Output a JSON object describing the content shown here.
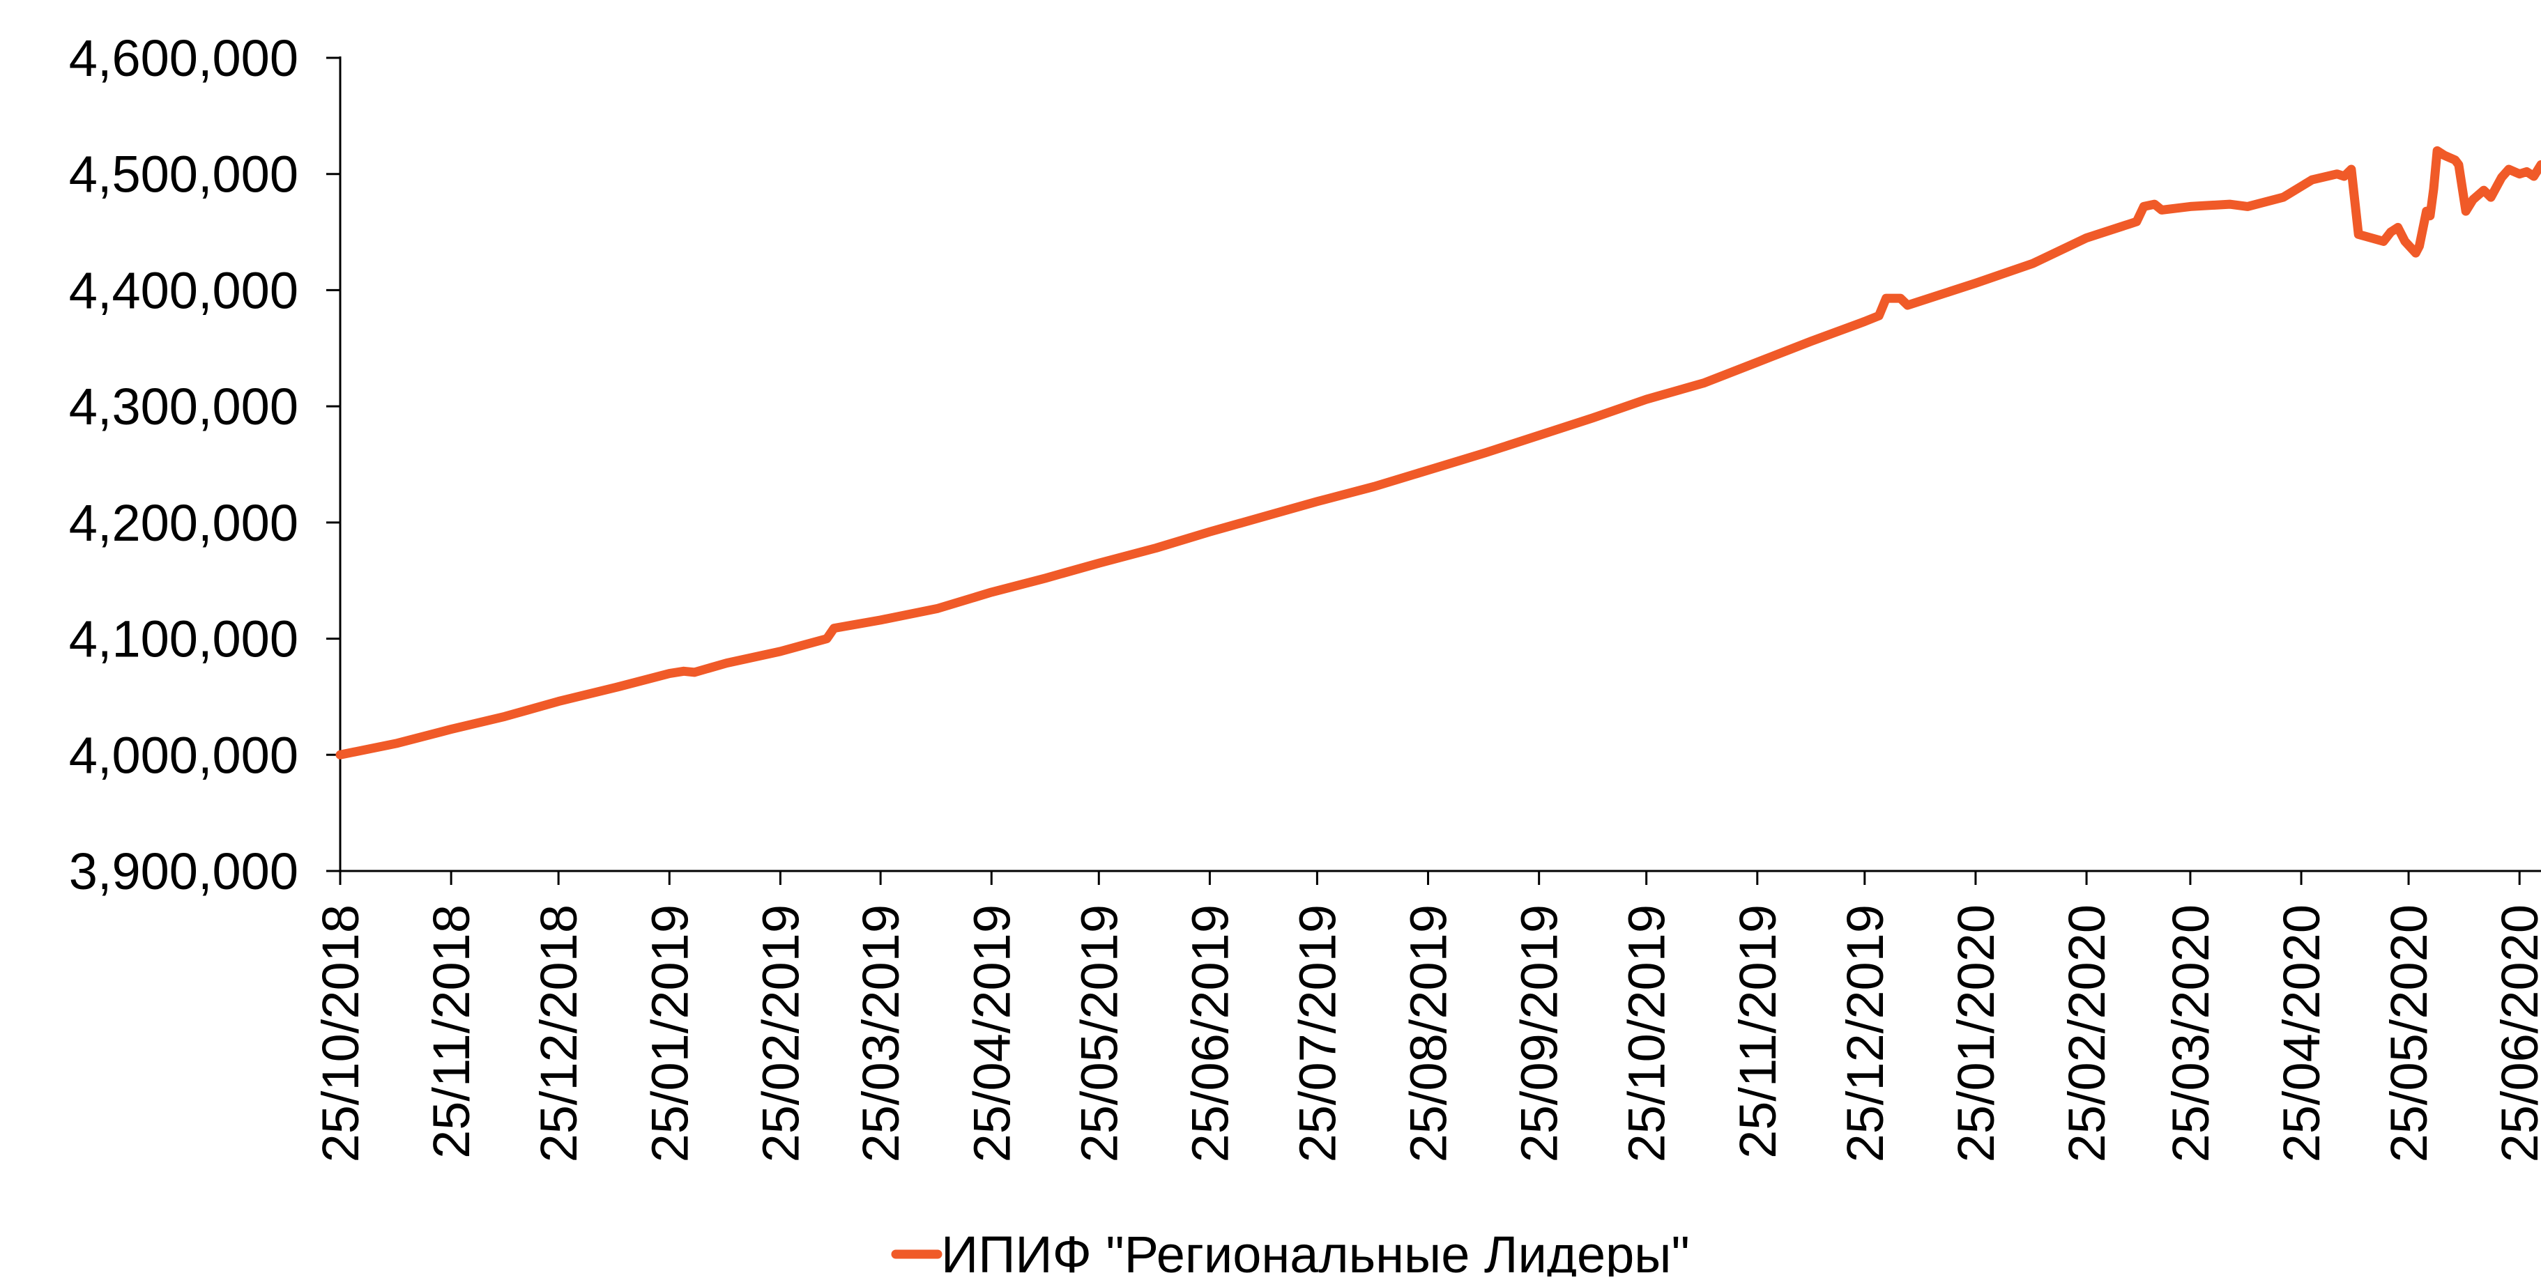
{
  "chart_data": {
    "type": "line",
    "title": "",
    "xlabel": "",
    "ylabel": "",
    "ylim": [
      3900000,
      4600000
    ],
    "yticks": [
      3900000,
      4000000,
      4100000,
      4200000,
      4300000,
      4400000,
      4500000,
      4600000
    ],
    "ytick_labels": [
      "3,900,000",
      "4,000,000",
      "4,100,000",
      "4,200,000",
      "4,300,000",
      "4,400,000",
      "4,500,000",
      "4,600,000"
    ],
    "xlim": [
      "2018-10-25",
      "2020-07-01"
    ],
    "xticks": [
      "2018-10-25",
      "2018-11-25",
      "2018-12-25",
      "2019-01-25",
      "2019-02-25",
      "2019-03-25",
      "2019-04-25",
      "2019-05-25",
      "2019-06-25",
      "2019-07-25",
      "2019-08-25",
      "2019-09-25",
      "2019-10-25",
      "2019-11-25",
      "2019-12-25",
      "2020-01-25",
      "2020-02-25",
      "2020-03-25",
      "2020-04-25",
      "2020-05-25",
      "2020-06-25"
    ],
    "xtick_labels": [
      "25/10/2018",
      "25/11/2018",
      "25/12/2018",
      "25/01/2019",
      "25/02/2019",
      "25/03/2019",
      "25/04/2019",
      "25/05/2019",
      "25/06/2019",
      "25/07/2019",
      "25/08/2019",
      "25/09/2019",
      "25/10/2019",
      "25/11/2019",
      "25/12/2019",
      "25/01/2020",
      "25/02/2020",
      "25/03/2020",
      "25/04/2020",
      "25/05/2020",
      "25/06/2020"
    ],
    "grid": false,
    "legend": "bottom-center",
    "series": [
      {
        "name": "ИПИФ \"Региональные Лидеры\"",
        "color": "#F05A28",
        "points": [
          [
            "2018-10-25",
            4000000
          ],
          [
            "2018-11-10",
            4010000
          ],
          [
            "2018-11-25",
            4022000
          ],
          [
            "2018-12-10",
            4033000
          ],
          [
            "2018-12-25",
            4046000
          ],
          [
            "2019-01-10",
            4058000
          ],
          [
            "2019-01-25",
            4070000
          ],
          [
            "2019-01-29",
            4072000
          ],
          [
            "2019-02-01",
            4071000
          ],
          [
            "2019-02-10",
            4079000
          ],
          [
            "2019-02-25",
            4089000
          ],
          [
            "2019-03-10",
            4100000
          ],
          [
            "2019-03-12",
            4109000
          ],
          [
            "2019-03-25",
            4116000
          ],
          [
            "2019-04-10",
            4126000
          ],
          [
            "2019-04-25",
            4140000
          ],
          [
            "2019-05-10",
            4152000
          ],
          [
            "2019-05-25",
            4165000
          ],
          [
            "2019-06-10",
            4178000
          ],
          [
            "2019-06-25",
            4192000
          ],
          [
            "2019-07-10",
            4205000
          ],
          [
            "2019-07-25",
            4218000
          ],
          [
            "2019-08-10",
            4231000
          ],
          [
            "2019-08-25",
            4245000
          ],
          [
            "2019-09-10",
            4260000
          ],
          [
            "2019-09-25",
            4275000
          ],
          [
            "2019-10-10",
            4290000
          ],
          [
            "2019-10-25",
            4306000
          ],
          [
            "2019-11-10",
            4320000
          ],
          [
            "2019-11-25",
            4338000
          ],
          [
            "2019-12-10",
            4356000
          ],
          [
            "2019-12-25",
            4373000
          ],
          [
            "2019-12-29",
            4378000
          ],
          [
            "2019-12-31",
            4393000
          ],
          [
            "2020-01-04",
            4393000
          ],
          [
            "2020-01-06",
            4387000
          ],
          [
            "2020-01-25",
            4406000
          ],
          [
            "2020-02-10",
            4423000
          ],
          [
            "2020-02-25",
            4445000
          ],
          [
            "2020-03-08",
            4457000
          ],
          [
            "2020-03-10",
            4459000
          ],
          [
            "2020-03-12",
            4472000
          ],
          [
            "2020-03-15",
            4474000
          ],
          [
            "2020-03-17",
            4469000
          ],
          [
            "2020-03-25",
            4472000
          ],
          [
            "2020-04-05",
            4474000
          ],
          [
            "2020-04-10",
            4472000
          ],
          [
            "2020-04-20",
            4480000
          ],
          [
            "2020-04-28",
            4495000
          ],
          [
            "2020-05-05",
            4500000
          ],
          [
            "2020-05-07",
            4498000
          ],
          [
            "2020-05-09",
            4504000
          ],
          [
            "2020-05-11",
            4448000
          ],
          [
            "2020-05-18",
            4442000
          ],
          [
            "2020-05-20",
            4450000
          ],
          [
            "2020-05-22",
            4454000
          ],
          [
            "2020-05-24",
            4442000
          ],
          [
            "2020-05-27",
            4432000
          ],
          [
            "2020-05-28",
            4438000
          ],
          [
            "2020-05-30",
            4468000
          ],
          [
            "2020-05-31",
            4464000
          ],
          [
            "2020-06-01",
            4487000
          ],
          [
            "2020-06-02",
            4520000
          ],
          [
            "2020-06-04",
            4516000
          ],
          [
            "2020-06-07",
            4512000
          ],
          [
            "2020-06-08",
            4508000
          ],
          [
            "2020-06-10",
            4468000
          ],
          [
            "2020-06-12",
            4478000
          ],
          [
            "2020-06-15",
            4486000
          ],
          [
            "2020-06-17",
            4480000
          ],
          [
            "2020-06-20",
            4497000
          ],
          [
            "2020-06-22",
            4504000
          ],
          [
            "2020-06-25",
            4500000
          ],
          [
            "2020-06-27",
            4502000
          ],
          [
            "2020-06-29",
            4498000
          ],
          [
            "2020-07-01",
            4508000
          ]
        ]
      }
    ]
  }
}
